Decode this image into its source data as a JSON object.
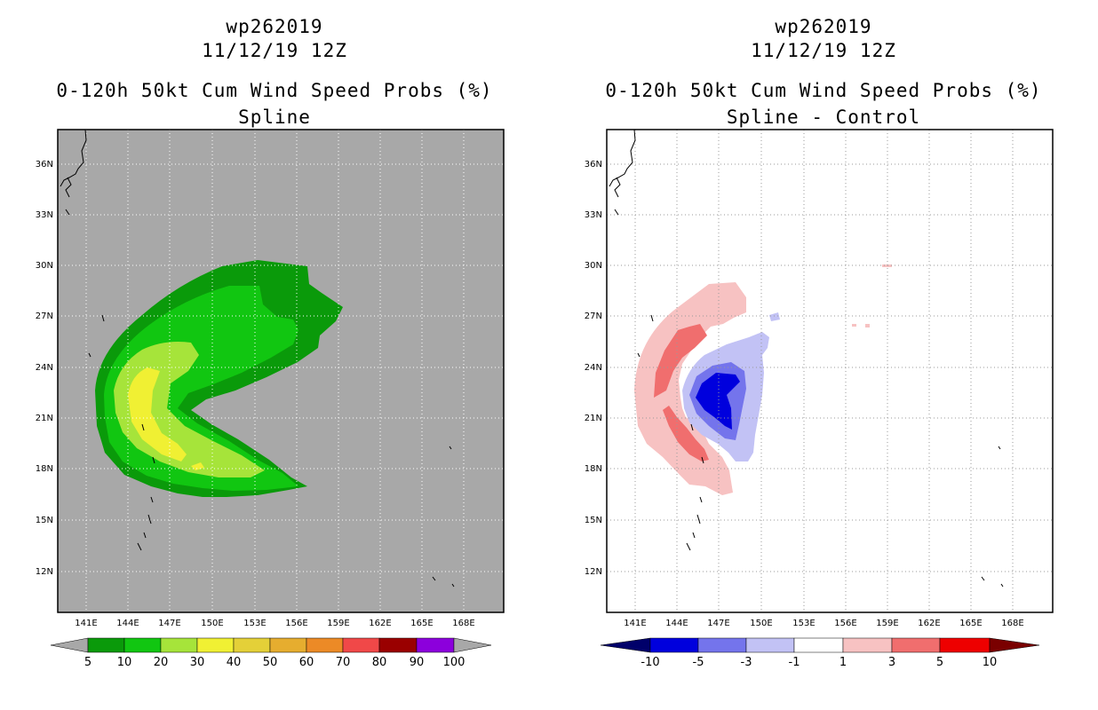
{
  "colors": {
    "grey_bg": "#a8a8a8",
    "green_dark": "#0a9a0a",
    "green_mid": "#11c611",
    "green_light": "#a6e43a",
    "yellow": "#f0f033",
    "red_light": "#f7c2c2",
    "red_mid": "#f06e6e",
    "blue_light": "#c2c2f5",
    "blue_mid": "#7474ec",
    "blue_dark": "#0000dd"
  },
  "left": {
    "title_line1": "wp262019",
    "title_line2": "11/12/19 12Z",
    "title_line3": "0-120h 50kt Cum Wind Speed Probs (%)",
    "title_line4": "Spline",
    "lat_labels": [
      "36N",
      "33N",
      "30N",
      "27N",
      "24N",
      "21N",
      "18N",
      "15N",
      "12N"
    ],
    "lon_labels": [
      "141E",
      "144E",
      "147E",
      "150E",
      "153E",
      "156E",
      "159E",
      "162E",
      "165E",
      "168E"
    ],
    "colorbar": {
      "labels": [
        "5",
        "10",
        "20",
        "30",
        "40",
        "50",
        "60",
        "70",
        "80",
        "90",
        "100"
      ],
      "colors": [
        "#0a9a0a",
        "#11c611",
        "#a6e43a",
        "#f0f033",
        "#e4d038",
        "#e6ad2f",
        "#ec8a26",
        "#f04848",
        "#9a0000",
        "#8c00dc"
      ]
    }
  },
  "right": {
    "title_line1": "wp262019",
    "title_line2": "11/12/19 12Z",
    "title_line3": "0-120h 50kt Cum Wind Speed Probs (%)",
    "title_line4": "Spline - Control",
    "lat_labels": [
      "36N",
      "33N",
      "30N",
      "27N",
      "24N",
      "21N",
      "18N",
      "15N",
      "12N"
    ],
    "lon_labels": [
      "141E",
      "144E",
      "147E",
      "150E",
      "153E",
      "156E",
      "159E",
      "162E",
      "165E",
      "168E"
    ],
    "colorbar": {
      "labels": [
        "-10",
        "-5",
        "-3",
        "-1",
        "1",
        "3",
        "5",
        "10"
      ],
      "colors": [
        "#0000dd",
        "#7474ec",
        "#c2c2f5",
        "#ffffff",
        "#f7c2c2",
        "#f06e6e",
        "#ee0000"
      ]
    }
  }
}
